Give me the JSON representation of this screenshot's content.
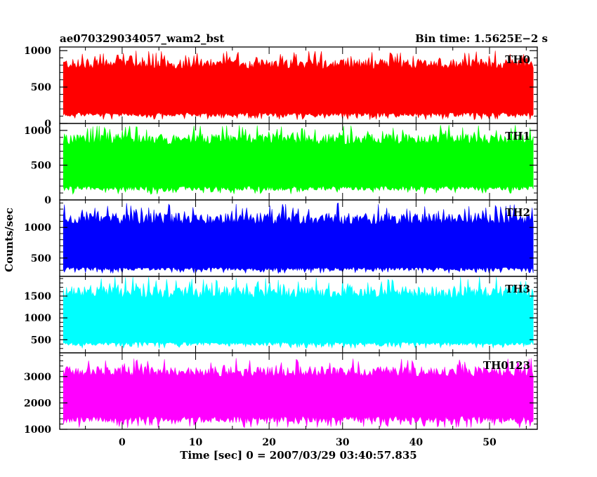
{
  "header": {
    "title": "ae070329034057_wam2_bst",
    "bin_time": "Bin time: 1.5625E−2 s"
  },
  "chart_data": {
    "type": "line",
    "xlabel": "Time [sec] 0 = 2007/03/29 03:40:57.835",
    "ylabel": "Counts/sec",
    "xlim": [
      -8.5,
      56.5
    ],
    "data_x_range": [
      -8,
      56
    ],
    "x_ticks": [
      0,
      10,
      20,
      30,
      40,
      50
    ],
    "panels": [
      {
        "name": "TH0",
        "color": "#ff0000",
        "ylim": [
          0,
          1050
        ],
        "y_ticks": [
          0,
          500,
          1000
        ],
        "typical_range": [
          150,
          750
        ],
        "envelope": [
          50,
          1000
        ]
      },
      {
        "name": "TH1",
        "color": "#00ff00",
        "ylim": [
          0,
          1100
        ],
        "y_ticks": [
          0,
          500,
          1000
        ],
        "typical_range": [
          200,
          800
        ],
        "envelope": [
          80,
          1080
        ]
      },
      {
        "name": "TH2",
        "color": "#0000ff",
        "ylim": [
          200,
          1450
        ],
        "y_ticks": [
          500,
          1000
        ],
        "typical_range": [
          350,
          1050
        ],
        "envelope": [
          250,
          1400
        ]
      },
      {
        "name": "TH3",
        "color": "#00ffff",
        "ylim": [
          200,
          1950
        ],
        "y_ticks": [
          500,
          1000,
          1500
        ],
        "typical_range": [
          450,
          1450
        ],
        "envelope": [
          300,
          1950
        ]
      },
      {
        "name": "TH0123",
        "color": "#ff00ff",
        "ylim": [
          1000,
          3900
        ],
        "y_ticks": [
          1000,
          2000,
          3000
        ],
        "typical_range": [
          1500,
          3000
        ],
        "envelope": [
          1050,
          3700
        ]
      }
    ]
  }
}
